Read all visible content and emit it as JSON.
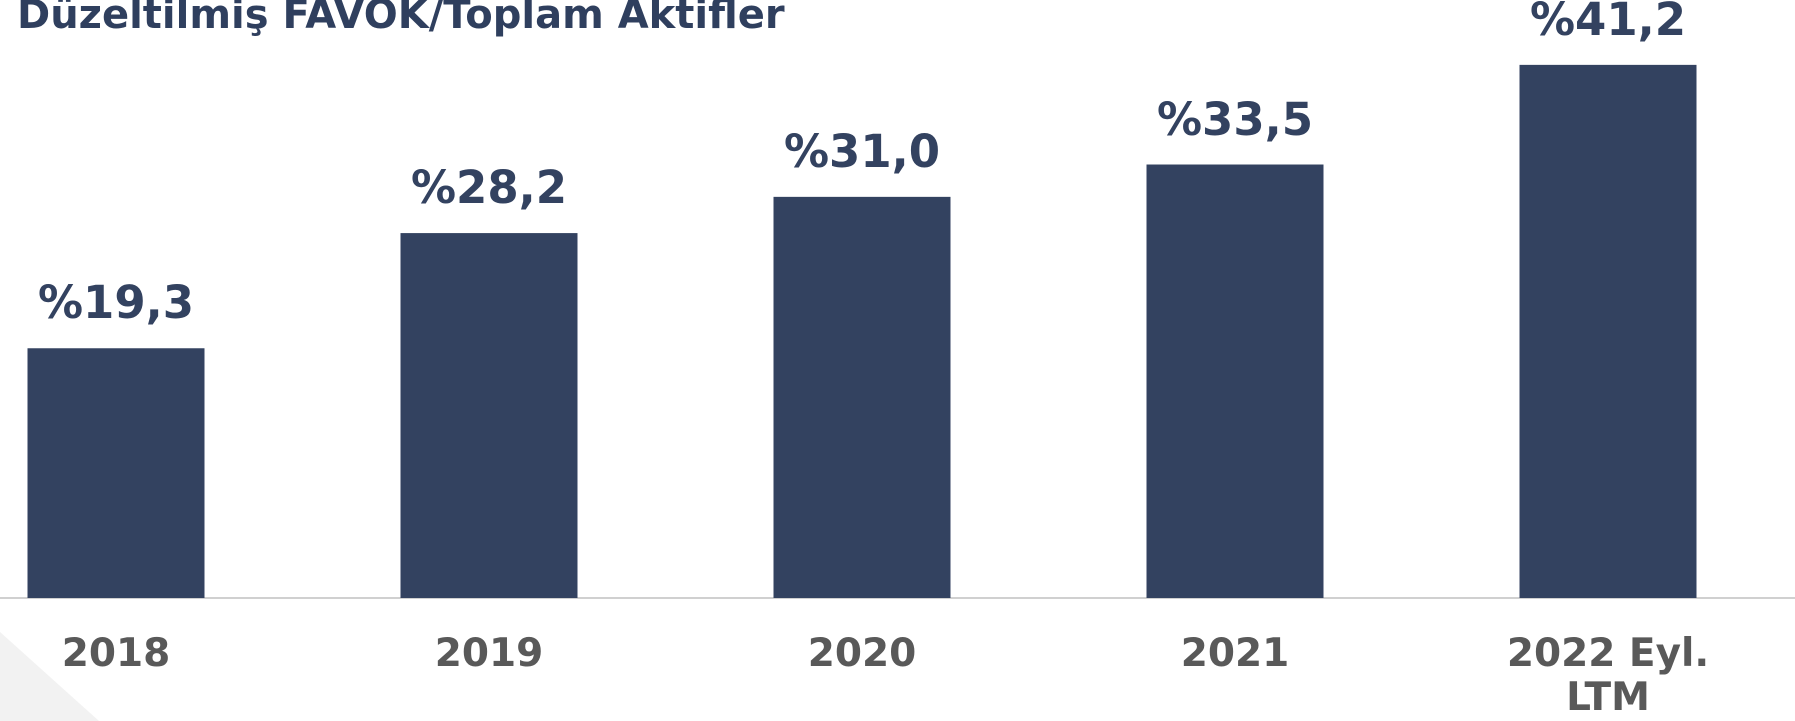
{
  "chart_data": {
    "type": "bar",
    "title": "Düzeltilmiş FAVÖK/Toplam Aktifler",
    "categories": [
      "2018",
      "2019",
      "2020",
      "2021",
      "2022 Eyl. LTM"
    ],
    "values": [
      19.3,
      28.2,
      31.0,
      33.5,
      41.2
    ],
    "value_labels": [
      "%19,3",
      "%28,2",
      "%31,0",
      "%33,5",
      "%41,2"
    ],
    "color": "#334260"
  }
}
